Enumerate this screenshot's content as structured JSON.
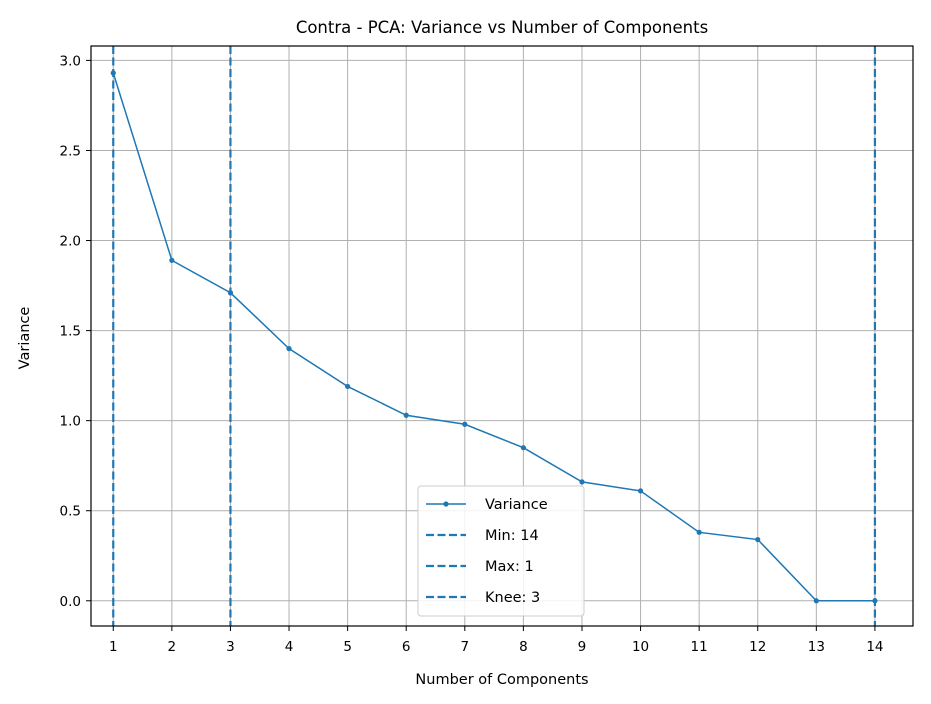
{
  "chart_data": {
    "type": "line",
    "title": "Contra - PCA: Variance vs Number of Components",
    "xlabel": "Number of Components",
    "ylabel": "Variance",
    "x": [
      1,
      2,
      3,
      4,
      5,
      6,
      7,
      8,
      9,
      10,
      11,
      12,
      13,
      14
    ],
    "xticks": [
      "1",
      "2",
      "3",
      "4",
      "5",
      "6",
      "7",
      "8",
      "9",
      "10",
      "11",
      "12",
      "13",
      "14"
    ],
    "xlim": [
      0.62,
      14.65
    ],
    "yticks": [
      "0.0",
      "0.5",
      "1.0",
      "1.5",
      "2.0",
      "2.5",
      "3.0"
    ],
    "ylim": [
      -0.14,
      3.08
    ],
    "grid": true,
    "legend_position": "bottom-center",
    "series": [
      {
        "name": "Variance",
        "values": [
          2.93,
          1.89,
          1.71,
          1.4,
          1.19,
          1.03,
          0.98,
          0.85,
          0.66,
          0.61,
          0.38,
          0.34,
          0.0,
          0.0
        ],
        "color": "#1f77b4"
      }
    ],
    "vlines": [
      {
        "name": "Min: 14",
        "x": 14,
        "color": "#1f77b4"
      },
      {
        "name": "Max: 1",
        "x": 1,
        "color": "#1f77b4"
      },
      {
        "name": "Knee: 3",
        "x": 3,
        "color": "#1f77b4"
      }
    ]
  }
}
